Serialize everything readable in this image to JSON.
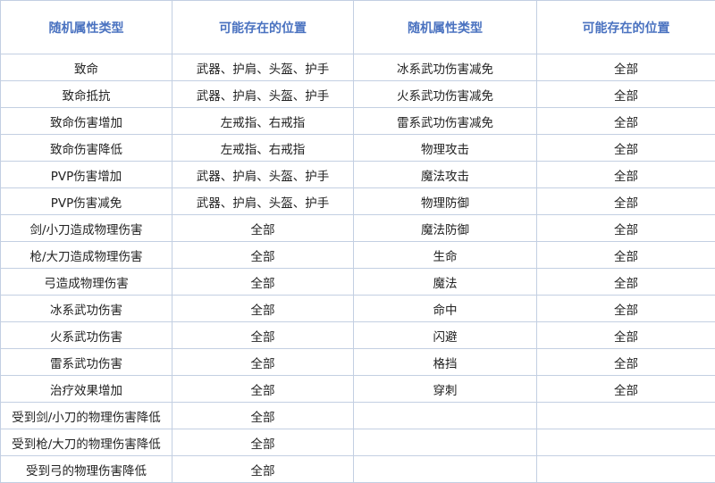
{
  "headers": [
    "随机属性类型",
    "可能存在的位置",
    "随机属性类型",
    "可能存在的位置"
  ],
  "rows": [
    [
      "致命",
      "武器、护肩、头盔、护手",
      "冰系武功伤害减免",
      "全部"
    ],
    [
      "致命抵抗",
      "武器、护肩、头盔、护手",
      "火系武功伤害减免",
      "全部"
    ],
    [
      "致命伤害增加",
      "左戒指、右戒指",
      "雷系武功伤害减免",
      "全部"
    ],
    [
      "致命伤害降低",
      "左戒指、右戒指",
      "物理攻击",
      "全部"
    ],
    [
      "PVP伤害增加",
      "武器、护肩、头盔、护手",
      "魔法攻击",
      "全部"
    ],
    [
      "PVP伤害减免",
      "武器、护肩、头盔、护手",
      "物理防御",
      "全部"
    ],
    [
      "剑/小刀造成物理伤害",
      "全部",
      "魔法防御",
      "全部"
    ],
    [
      "枪/大刀造成物理伤害",
      "全部",
      "生命",
      "全部"
    ],
    [
      "弓造成物理伤害",
      "全部",
      "魔法",
      "全部"
    ],
    [
      "冰系武功伤害",
      "全部",
      "命中",
      "全部"
    ],
    [
      "火系武功伤害",
      "全部",
      "闪避",
      "全部"
    ],
    [
      "雷系武功伤害",
      "全部",
      "格挡",
      "全部"
    ],
    [
      "治疗效果增加",
      "全部",
      "穿刺",
      "全部"
    ],
    [
      "受到剑/小刀的物理伤害降低",
      "全部",
      "",
      ""
    ],
    [
      "受到枪/大刀的物理伤害降低",
      "全部",
      "",
      ""
    ],
    [
      "受到弓的物理伤害降低",
      "全部",
      "",
      ""
    ]
  ]
}
